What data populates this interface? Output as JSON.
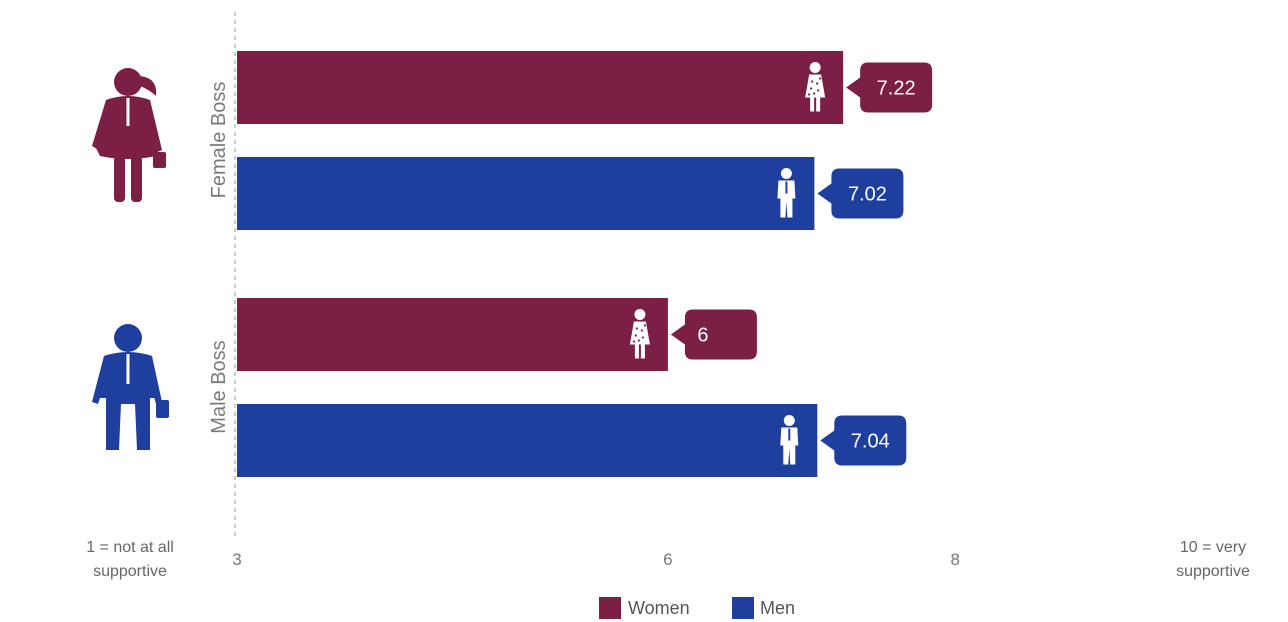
{
  "chart_data": {
    "type": "bar",
    "orientation": "horizontal",
    "categories": [
      "Female Boss",
      "Male Boss"
    ],
    "series": [
      {
        "name": "Women",
        "values": [
          7.22,
          6
        ],
        "labels": [
          "7.22",
          "6"
        ]
      },
      {
        "name": "Men",
        "values": [
          7.02,
          7.04
        ],
        "labels": [
          "7.02",
          "7.04"
        ]
      }
    ],
    "xlim": [
      3,
      8.5
    ],
    "xticks": [
      {
        "value": 3,
        "label": "3"
      },
      {
        "value": 6,
        "label": "6"
      },
      {
        "value": 8,
        "label": "8"
      }
    ],
    "scale_min_label": [
      "1 = not at all",
      "supportive"
    ],
    "scale_max_label": [
      "10 = very",
      "supportive"
    ],
    "legend_position": "bottom-center",
    "grid": false,
    "colors": {
      "Women": "#7b1f45",
      "Men": "#1f3f9e"
    }
  }
}
